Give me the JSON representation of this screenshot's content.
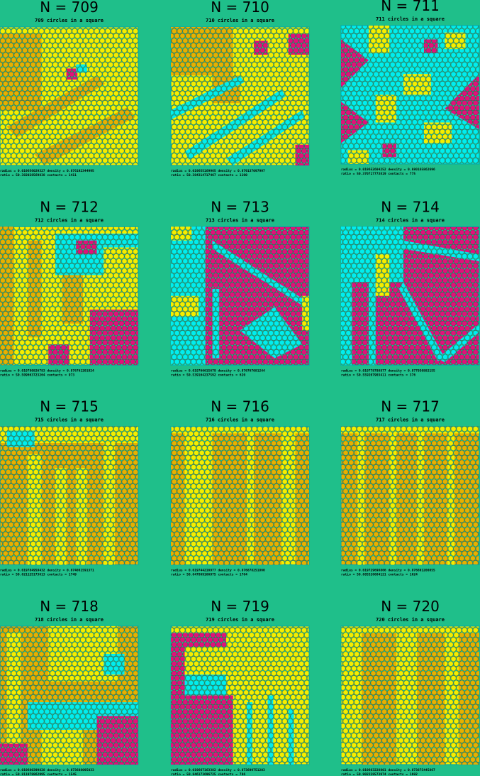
{
  "panels": [
    {
      "title": "N = 709",
      "subtitle": "709 circles in a square",
      "footer": [
        "radius =  0.019656029327   density = 0.876192344995",
        "ratio  = 50.382028569838   contacts = 1411"
      ]
    },
    {
      "title": "N = 710",
      "subtitle": "710 circles in a square",
      "footer": [
        "radius =  0.019655169965   density = 0.879137097997",
        "ratio  = 50.384314717467   contacts = 1190"
      ]
    },
    {
      "title": "N = 711",
      "subtitle": "711 circles in a square",
      "footer": [
        "radius =  0.019652604252   density = 0.880165862696",
        "ratio  = 50.370717773819   contacts = 775"
      ]
    },
    {
      "title": "N = 712",
      "subtitle": "712 circles in a square",
      "footer": [
        "radius =  0.019780826783   density = 0.876761201924",
        "ratio  = 50.509663723264   contacts = 973"
      ]
    },
    {
      "title": "N = 713",
      "subtitle": "713 circles in a square",
      "footer": [
        "radius =  0.019766615679   density = 0.876767081244",
        "ratio  = 50.539164237592   contacts = 620"
      ]
    },
    {
      "title": "N = 714",
      "subtitle": "714 circles in a square",
      "footer": [
        "radius =  0.019778798877   density = 0.877950882155",
        "ratio  = 50.559207903411   contacts = 376"
      ]
    },
    {
      "title": "N = 715",
      "subtitle": "715 circles in a square",
      "footer": [
        "radius =  0.019784959432   density = 0.874081591371",
        "ratio  = 50.621125173613   contacts = 1749"
      ]
    },
    {
      "title": "N = 716",
      "subtitle": "716 circles in a square",
      "footer": [
        "radius =  0.019744216977   density = 0.876878251860",
        "ratio  = 50.647869166975   contacts = 1764"
      ]
    },
    {
      "title": "N = 717",
      "subtitle": "717 circles in a square",
      "footer": [
        "radius =  0.019729698866   density = 0.876801200855",
        "ratio  = 50.685526684121   contacts = 1624"
      ]
    },
    {
      "title": "N = 718",
      "subtitle": "718 circles in a square",
      "footer": [
        "radius =  0.019680399828   density = 0.873688095033",
        "ratio  = 50.811978862995   contacts = 1545"
      ]
    },
    {
      "title": "N = 719",
      "subtitle": "719 circles in a square",
      "footer": [
        "radius =  0.019667163382   density = 0.873699751203",
        "ratio  = 50.846173696725   contacts = 786"
      ]
    },
    {
      "title": "N = 720",
      "subtitle": "720 circles in a square",
      "footer": [
        "radius =  0.019663228801   density = 0.873875445867",
        "ratio  = 50.902228573974   contacts = 1692"
      ]
    }
  ]
}
